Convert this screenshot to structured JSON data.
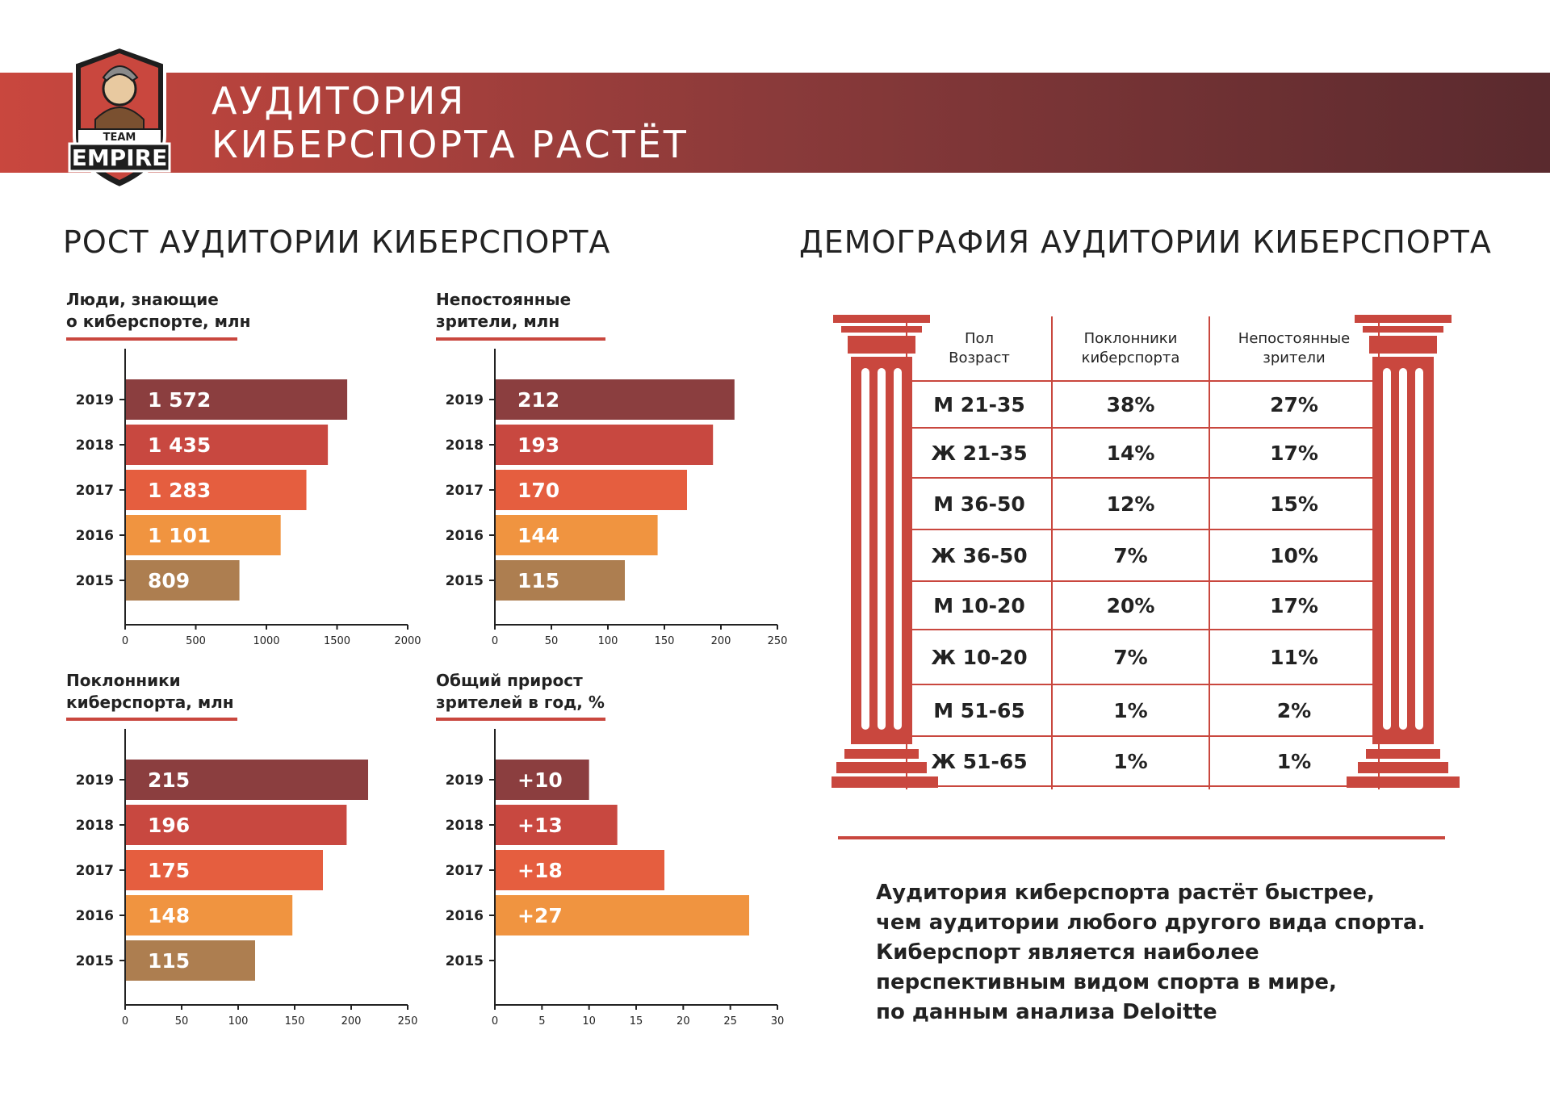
{
  "header": {
    "title_line1": "АУДИТОРИЯ",
    "title_line2": "КИБЕРСПОРТА РАСТЁТ",
    "logo_text_top": "TEAM",
    "logo_text_main": "EMPIRE"
  },
  "left_section_title": "РОСТ АУДИТОРИИ КИБЕРСПОРТА",
  "right_section_title": "ДЕМОГРАФИЯ АУДИТОРИИ КИБЕРСПОРТА",
  "colors": {
    "2019": "#8b3e3f",
    "2018": "#c84840",
    "2017": "#e55e3f",
    "2016": "#f09440",
    "2015": "#ad7e50",
    "accent": "#c9473e"
  },
  "chart_data": [
    {
      "type": "bar",
      "label_line1": "Люди, знающие",
      "label_line2": "о киберспорте, млн",
      "categories": [
        "2019",
        "2018",
        "2017",
        "2016",
        "2015"
      ],
      "values": [
        1572,
        1435,
        1283,
        1101,
        809
      ],
      "value_labels": [
        "1 572",
        "1 435",
        "1 283",
        "1 101",
        "809"
      ],
      "xlim": [
        0,
        2000
      ],
      "xticks": [
        0,
        500,
        1000,
        1500,
        2000
      ]
    },
    {
      "type": "bar",
      "label_line1": "Непостоянные",
      "label_line2": "зрители, млн",
      "categories": [
        "2019",
        "2018",
        "2017",
        "2016",
        "2015"
      ],
      "values": [
        212,
        193,
        170,
        144,
        115
      ],
      "value_labels": [
        "212",
        "193",
        "170",
        "144",
        "115"
      ],
      "xlim": [
        0,
        250
      ],
      "xticks": [
        0,
        50,
        100,
        150,
        200,
        250
      ]
    },
    {
      "type": "bar",
      "label_line1": "Поклонники",
      "label_line2": "киберспорта, млн",
      "categories": [
        "2019",
        "2018",
        "2017",
        "2016",
        "2015"
      ],
      "values": [
        215,
        196,
        175,
        148,
        115
      ],
      "value_labels": [
        "215",
        "196",
        "175",
        "148",
        "115"
      ],
      "xlim": [
        0,
        250
      ],
      "xticks": [
        0,
        50,
        100,
        150,
        200,
        250
      ]
    },
    {
      "type": "bar",
      "label_line1": "Общий прирост",
      "label_line2": "зрителей в год, %",
      "categories": [
        "2019",
        "2018",
        "2017",
        "2016",
        "2015"
      ],
      "values": [
        10,
        13,
        18,
        27,
        null
      ],
      "value_labels": [
        "+10",
        "+13",
        "+18",
        "+27",
        ""
      ],
      "xlim": [
        0,
        30
      ],
      "xticks": [
        0,
        5,
        10,
        15,
        20,
        25,
        30
      ]
    },
    {
      "type": "table",
      "header": [
        "Пол\nВозраст",
        "Поклонники\nкиберспорта",
        "Непостоянные\nзрители"
      ],
      "rows": [
        [
          "М 21-35",
          "38%",
          "27%"
        ],
        [
          "Ж 21-35",
          "14%",
          "17%"
        ],
        [
          "М 36-50",
          "12%",
          "15%"
        ],
        [
          "Ж 36-50",
          "7%",
          "10%"
        ],
        [
          "М 10-20",
          "20%",
          "17%"
        ],
        [
          "Ж 10-20",
          "7%",
          "11%"
        ],
        [
          "М 51-65",
          "1%",
          "2%"
        ],
        [
          "Ж 51-65",
          "1%",
          "1%"
        ]
      ]
    }
  ],
  "note_lines": [
    "Аудитория киберспорта растёт быстрее,",
    "чем аудитории любого другого вида спорта.",
    "Киберспорт является наиболее",
    "перспективным видом спорта в мире,",
    "по данным анализа Deloitte"
  ]
}
